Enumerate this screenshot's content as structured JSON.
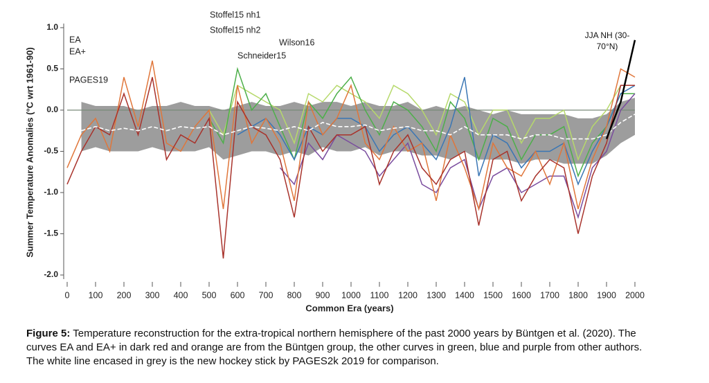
{
  "chart_data": {
    "type": "line",
    "ylabel": "Summer Temperature Anomalies (°C wrt 1961-90)",
    "xlabel": "Common Era (years)",
    "x": [
      0,
      50,
      100,
      150,
      200,
      250,
      300,
      350,
      400,
      450,
      500,
      550,
      600,
      650,
      700,
      750,
      800,
      850,
      900,
      950,
      1000,
      1050,
      1100,
      1150,
      1200,
      1250,
      1300,
      1350,
      1400,
      1450,
      1500,
      1550,
      1600,
      1650,
      1700,
      1750,
      1800,
      1850,
      1900,
      1950,
      2000
    ],
    "xlim": [
      -10,
      2010
    ],
    "xticks": [
      0,
      100,
      200,
      300,
      400,
      500,
      600,
      700,
      800,
      900,
      1000,
      1100,
      1200,
      1300,
      1400,
      1500,
      1600,
      1700,
      1800,
      1900,
      2000
    ],
    "ylim": [
      -2.05,
      1.05
    ],
    "yticks": [
      {
        "value": 1,
        "label": "1.0"
      },
      0.5,
      {
        "value": 0,
        "label": "0.0"
      },
      -0.5,
      {
        "value": -1,
        "label": "-1.0"
      },
      -1.5,
      {
        "value": -2,
        "label": "-2.0"
      }
    ],
    "series": [
      {
        "name": "PAGES19",
        "color": "#8c8c8c",
        "values": [
          null,
          -0.25,
          -0.2,
          -0.25,
          -0.22,
          -0.25,
          -0.2,
          -0.25,
          -0.2,
          -0.22,
          -0.2,
          -0.3,
          -0.25,
          -0.2,
          -0.22,
          -0.25,
          -0.2,
          -0.25,
          -0.15,
          -0.2,
          -0.2,
          -0.18,
          -0.25,
          -0.22,
          -0.2,
          -0.25,
          -0.25,
          -0.3,
          -0.2,
          -0.3,
          -0.3,
          -0.3,
          -0.35,
          -0.3,
          -0.3,
          -0.35,
          -0.35,
          -0.35,
          -0.3,
          -0.15,
          -0.05
        ],
        "band": {
          "upper": [
            null,
            0.1,
            0.05,
            0.05,
            0.05,
            0.0,
            0.05,
            0.05,
            0.1,
            0.05,
            0.05,
            0.0,
            0.05,
            0.1,
            0.05,
            0.05,
            0.1,
            0.05,
            0.1,
            0.1,
            0.05,
            0.1,
            0.05,
            0.05,
            0.1,
            0.0,
            0.05,
            0.0,
            0.05,
            0.0,
            -0.05,
            0.0,
            -0.05,
            -0.05,
            -0.05,
            -0.05,
            -0.1,
            -0.1,
            -0.05,
            0.1,
            0.15
          ],
          "lower": [
            null,
            -0.5,
            -0.45,
            -0.5,
            -0.5,
            -0.5,
            -0.45,
            -0.5,
            -0.5,
            -0.5,
            -0.45,
            -0.6,
            -0.55,
            -0.5,
            -0.5,
            -0.55,
            -0.5,
            -0.55,
            -0.45,
            -0.5,
            -0.5,
            -0.45,
            -0.55,
            -0.5,
            -0.5,
            -0.55,
            -0.55,
            -0.6,
            -0.5,
            -0.6,
            -0.6,
            -0.6,
            -0.65,
            -0.6,
            -0.6,
            -0.65,
            -0.65,
            -0.65,
            -0.55,
            -0.4,
            -0.3
          ]
        }
      },
      {
        "name": "EA",
        "color": "#a8322b",
        "values": [
          -0.9,
          -0.5,
          -0.2,
          -0.3,
          0.2,
          -0.3,
          0.4,
          -0.6,
          -0.3,
          -0.4,
          -0.1,
          -1.8,
          0.1,
          -0.2,
          -0.3,
          -0.6,
          -1.3,
          -0.2,
          -0.5,
          -0.3,
          -0.3,
          -0.2,
          -0.9,
          -0.5,
          -0.3,
          -0.7,
          -0.9,
          -0.6,
          -0.5,
          -1.4,
          -0.6,
          -0.5,
          -1.1,
          -0.8,
          -0.6,
          -0.7,
          -1.5,
          -0.8,
          -0.4,
          0.3,
          0.3
        ]
      },
      {
        "name": "EA+",
        "color": "#e0763a",
        "values": [
          -0.7,
          -0.3,
          -0.1,
          -0.5,
          0.4,
          -0.2,
          0.6,
          -0.4,
          -0.5,
          -0.2,
          0.0,
          -1.2,
          0.3,
          -0.4,
          -0.1,
          -0.4,
          -1.1,
          0.1,
          -0.3,
          -0.1,
          0.3,
          -0.4,
          -0.6,
          -0.2,
          -0.5,
          -0.4,
          -1.1,
          -0.3,
          -0.7,
          -1.2,
          -0.4,
          -0.7,
          -0.8,
          -0.5,
          -0.9,
          -0.4,
          -1.2,
          -0.6,
          -0.2,
          0.5,
          0.4
        ]
      },
      {
        "name": "Stoffel15 nh1",
        "color": "#4daf4a",
        "values": [
          null,
          null,
          null,
          null,
          null,
          null,
          null,
          null,
          null,
          null,
          -0.1,
          -0.4,
          0.5,
          0.0,
          0.2,
          -0.2,
          -0.6,
          0.1,
          -0.1,
          0.2,
          0.4,
          0.0,
          -0.3,
          0.1,
          0.0,
          -0.2,
          -0.5,
          0.1,
          -0.1,
          -0.6,
          -0.1,
          -0.2,
          -0.6,
          -0.3,
          -0.3,
          -0.2,
          -0.8,
          -0.4,
          -0.2,
          0.2,
          0.2
        ]
      },
      {
        "name": "Stoffel15 nh2",
        "color": "#b6d96b",
        "values": [
          null,
          null,
          null,
          null,
          null,
          null,
          null,
          null,
          null,
          null,
          0.0,
          -0.3,
          0.3,
          0.2,
          0.1,
          0.0,
          -0.4,
          0.2,
          0.1,
          0.3,
          0.2,
          0.1,
          -0.1,
          0.3,
          0.2,
          0.0,
          -0.3,
          0.2,
          0.1,
          -0.3,
          0.0,
          0.0,
          -0.4,
          -0.1,
          -0.1,
          0.0,
          -0.6,
          -0.2,
          0.0,
          0.3,
          0.3
        ]
      },
      {
        "name": "Wilson16",
        "color": "#7a4c9e",
        "values": [
          null,
          null,
          null,
          null,
          null,
          null,
          null,
          null,
          null,
          null,
          null,
          null,
          null,
          null,
          null,
          -0.7,
          -0.9,
          -0.4,
          -0.6,
          -0.3,
          -0.4,
          -0.5,
          -0.8,
          -0.6,
          -0.4,
          -0.9,
          -1.0,
          -0.7,
          -0.6,
          -1.2,
          -0.8,
          -0.7,
          -1.0,
          -0.9,
          -0.8,
          -0.8,
          -1.3,
          -0.7,
          -0.5,
          0.0,
          0.2
        ]
      },
      {
        "name": "Schneider15",
        "color": "#3a76b4",
        "values": [
          null,
          null,
          null,
          null,
          null,
          null,
          null,
          null,
          null,
          null,
          null,
          null,
          -0.3,
          -0.2,
          -0.1,
          -0.3,
          -0.6,
          -0.2,
          -0.3,
          -0.1,
          -0.1,
          -0.2,
          -0.5,
          -0.3,
          -0.2,
          -0.4,
          -0.6,
          -0.2,
          0.4,
          -0.8,
          -0.3,
          -0.4,
          -0.7,
          -0.5,
          -0.5,
          -0.4,
          -0.9,
          -0.5,
          -0.2,
          0.2,
          0.3
        ]
      },
      {
        "name": "JJA NH (30-70°N)",
        "color": "#000000",
        "values": [
          null,
          null,
          null,
          null,
          null,
          null,
          null,
          null,
          null,
          null,
          null,
          null,
          null,
          null,
          null,
          null,
          null,
          null,
          null,
          null,
          null,
          null,
          null,
          null,
          null,
          null,
          null,
          null,
          null,
          null,
          null,
          null,
          null,
          null,
          null,
          null,
          null,
          null,
          -0.35,
          0.1,
          0.85
        ]
      }
    ]
  },
  "caption": {
    "label": "Figure 5:",
    "text": " Temperature reconstruction for the extra-tropical northern hemisphere of the past 2000 years by Büntgen et al. (2020). The curves EA and EA+ in dark red and orange are from the Büntgen group, the other curves in green, blue and purple from other authors. The white line encased in grey is the new hockey stick by PAGES2k 2019 for comparison."
  }
}
